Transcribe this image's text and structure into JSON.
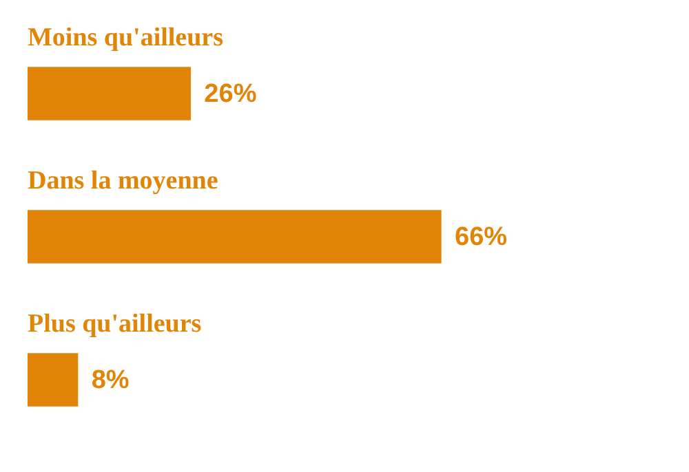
{
  "chart_data": {
    "type": "bar",
    "orientation": "horizontal",
    "categories": [
      "Moins qu'ailleurs",
      "Dans la moyenne",
      "Plus qu'ailleurs"
    ],
    "values": [
      26,
      66,
      8
    ],
    "value_labels": [
      "26%",
      "66%",
      "8%"
    ],
    "color": "#e08508"
  }
}
